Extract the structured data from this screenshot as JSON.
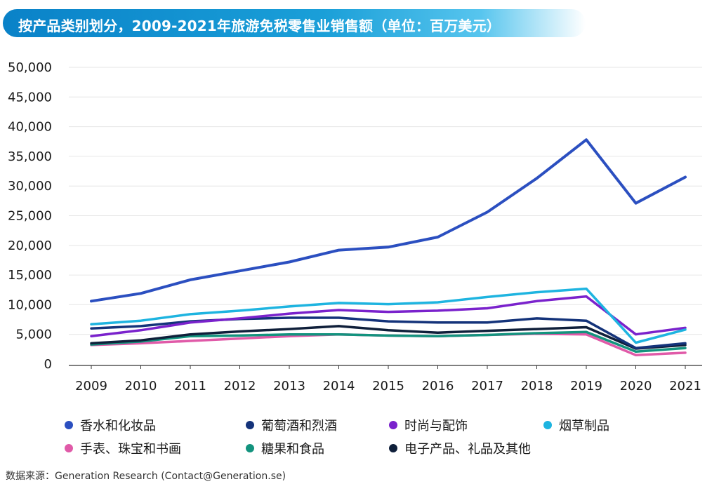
{
  "title": "按产品类别划分，2009-2021年旅游免税零售业销售额（单位：百万美元）",
  "source": "数据来源：Generation Research (Contact@Generation.se)",
  "colors": {
    "banner_start": "#0a82c8",
    "banner_end": "#57c5ee"
  },
  "chart_data": {
    "type": "line",
    "title": "按产品类别划分，2009-2021年旅游免税零售业销售额（单位：百万美元）",
    "xlabel": "",
    "ylabel": "",
    "x": [
      "2009",
      "2010",
      "2011",
      "2012",
      "2013",
      "2014",
      "2015",
      "2016",
      "2017",
      "2018",
      "2019",
      "2020",
      "2021"
    ],
    "yticks": [
      "50,000",
      "45,000",
      "40,000",
      "35,000",
      "30,000",
      "25,000",
      "20,000",
      "15,000",
      "10,000",
      "5,000",
      "0"
    ],
    "ylim": [
      0,
      50000
    ],
    "grid": true,
    "legend_position": "bottom",
    "series": [
      {
        "name": "香水和化妆品",
        "color": "#2b4fc0",
        "values": [
          10600,
          11900,
          14200,
          15700,
          17200,
          19200,
          19700,
          21400,
          25600,
          31300,
          37800,
          27100,
          31500
        ]
      },
      {
        "name": "葡萄酒和烈酒",
        "color": "#14337a",
        "values": [
          6000,
          6400,
          7200,
          7600,
          7800,
          7800,
          7200,
          7000,
          7000,
          7700,
          7300,
          2700,
          3500
        ]
      },
      {
        "name": "时尚与配饰",
        "color": "#7a22cc",
        "values": [
          4700,
          5700,
          7000,
          7700,
          8500,
          9100,
          8800,
          9000,
          9400,
          10600,
          11400,
          5000,
          6100
        ]
      },
      {
        "name": "烟草制品",
        "color": "#1eb4e0",
        "values": [
          6700,
          7300,
          8400,
          9000,
          9700,
          10300,
          10100,
          10400,
          11300,
          12100,
          12700,
          3600,
          5800
        ]
      },
      {
        "name": "手表、珠宝和书画",
        "color": "#e05aa8",
        "values": [
          3200,
          3500,
          3900,
          4300,
          4700,
          5000,
          4800,
          4700,
          4900,
          5100,
          5000,
          1500,
          1900
        ]
      },
      {
        "name": "糖果和食品",
        "color": "#13937e",
        "values": [
          3300,
          3800,
          4700,
          4800,
          5000,
          5000,
          4800,
          4700,
          4900,
          5200,
          5400,
          2100,
          2700
        ]
      },
      {
        "name": "电子产品、礼品及其他",
        "color": "#0f1f3a",
        "values": [
          3500,
          4000,
          5000,
          5500,
          5900,
          6400,
          5700,
          5300,
          5600,
          5900,
          6200,
          2600,
          3200
        ]
      }
    ]
  }
}
